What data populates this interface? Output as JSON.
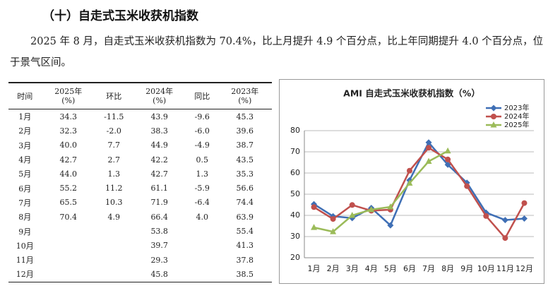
{
  "header": {
    "title": "（十）自走式玉米收获机指数"
  },
  "paragraph": "2025 年 8 月，自走式玉米收获机指数为 70.4%，比上月提升 4.9 个百分点，比上年同期提升 4.0 个百分点，位于景气区间。",
  "table": {
    "header": [
      "时间",
      "2025年\n(%)",
      "环比",
      "2024年\n(%)",
      "同比",
      "2023年\n(%)"
    ],
    "rows": [
      [
        "1月",
        "34.3",
        "-11.5",
        "43.9",
        "-9.6",
        "45.3"
      ],
      [
        "2月",
        "32.3",
        "-2.0",
        "38.3",
        "-6.0",
        "39.6"
      ],
      [
        "3月",
        "40.0",
        "7.7",
        "44.9",
        "-4.9",
        "38.7"
      ],
      [
        "4月",
        "42.7",
        "2.7",
        "42.2",
        "0.5",
        "43.5"
      ],
      [
        "5月",
        "44.0",
        "1.3",
        "42.7",
        "1.3",
        "35.3"
      ],
      [
        "6月",
        "55.2",
        "11.2",
        "61.1",
        "-5.9",
        "56.6"
      ],
      [
        "7月",
        "65.5",
        "10.3",
        "71.9",
        "-6.4",
        "74.4"
      ],
      [
        "8月",
        "70.4",
        "4.9",
        "66.4",
        "4.0",
        "63.9"
      ],
      [
        "9月",
        null,
        null,
        "53.8",
        null,
        "55.4"
      ],
      [
        "10月",
        null,
        null,
        "39.7",
        null,
        "41.3"
      ],
      [
        "11月",
        null,
        null,
        "29.3",
        null,
        "37.8"
      ],
      [
        "12月",
        null,
        null,
        "45.8",
        null,
        "38.5"
      ]
    ]
  },
  "chart_data": {
    "type": "line",
    "title": "AMI 自走式玉米收获机指数（%）",
    "categories": [
      "1月",
      "2月",
      "3月",
      "4月",
      "5月",
      "6月",
      "7月",
      "8月",
      "9月",
      "10月",
      "11月",
      "12月"
    ],
    "series": [
      {
        "name": "2023年",
        "color": "#3f6fb5",
        "marker": "diamond",
        "values": [
          45.3,
          39.6,
          38.7,
          43.5,
          35.3,
          56.6,
          74.4,
          63.9,
          55.4,
          41.3,
          37.8,
          38.5
        ]
      },
      {
        "name": "2024年",
        "color": "#c0504d",
        "marker": "circle",
        "values": [
          43.9,
          38.3,
          44.9,
          42.2,
          42.7,
          61.1,
          71.9,
          66.4,
          53.8,
          39.7,
          29.3,
          45.8
        ]
      },
      {
        "name": "2025年",
        "color": "#9bbb59",
        "marker": "triangle",
        "values": [
          34.3,
          32.3,
          40.0,
          42.7,
          44.0,
          55.2,
          65.5,
          70.4,
          null,
          null,
          null,
          null
        ]
      }
    ],
    "ylim": [
      20,
      80
    ],
    "yticks": [
      20,
      30,
      40,
      50,
      60,
      70,
      80
    ],
    "grid": true,
    "legend": "top-right"
  }
}
